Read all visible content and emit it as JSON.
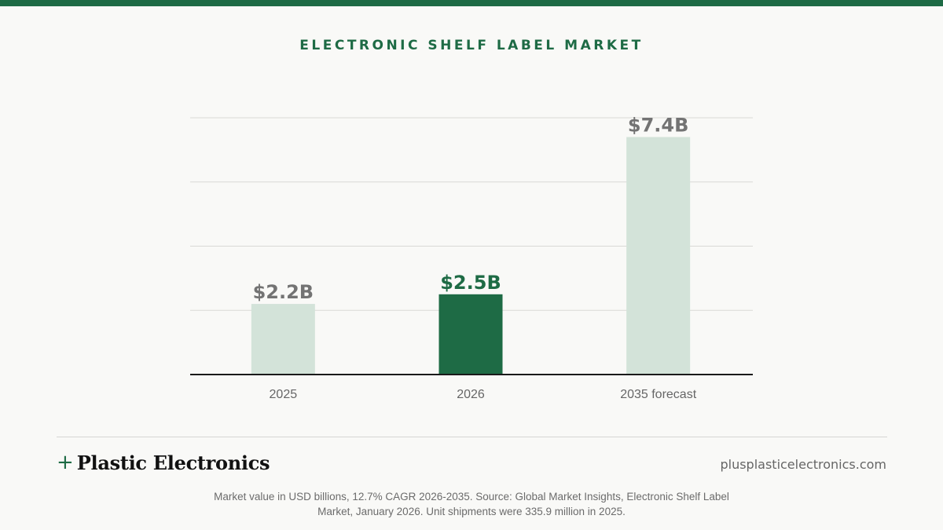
{
  "header": {
    "title": "ELECTRONIC SHELF LABEL MARKET"
  },
  "colors": {
    "brand_green": "#1e6b45",
    "light_bar": "#d3e3d9",
    "label_gray": "#737373"
  },
  "chart_data": {
    "type": "bar",
    "title": "ELECTRONIC SHELF LABEL MARKET",
    "categories": [
      "2025",
      "2026",
      "2035 forecast"
    ],
    "values": [
      2.2,
      2.5,
      7.4
    ],
    "value_labels": [
      "$2.2B",
      "$2.5B",
      "$7.4B"
    ],
    "highlighted_index": 1,
    "unit": "USD billions",
    "xlabel": "",
    "ylabel": "",
    "ylim": [
      0,
      8
    ],
    "grid": true,
    "legend": "none"
  },
  "footer": {
    "brand_plus": "+",
    "brand_name": "Plastic Electronics",
    "url": "plusplasticelectronics.com",
    "note": "Market value in USD billions, 12.7% CAGR 2026-2035. Source: Global Market Insights, Electronic Shelf Label Market, January 2026. Unit shipments were 335.9 million in 2025."
  }
}
